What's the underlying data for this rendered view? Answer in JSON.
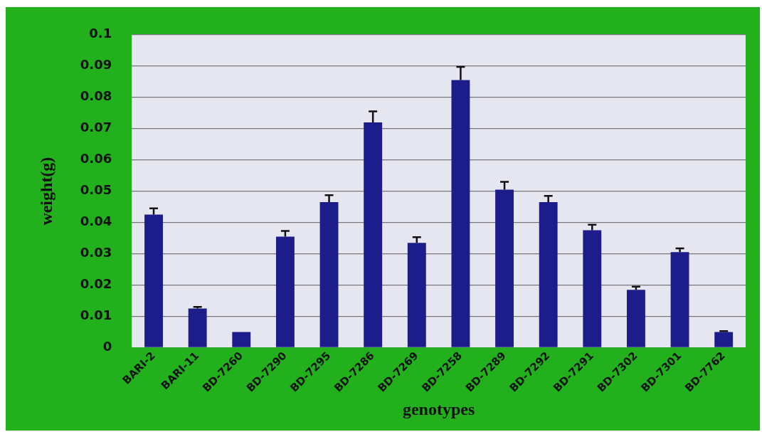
{
  "chart_data": {
    "type": "bar",
    "xlabel": "genotypes",
    "ylabel": "weight(g)",
    "categories": [
      "BARI-2",
      "BARI-11",
      "BD-7260",
      "BD-7290",
      "BD-7295",
      "BD-7286",
      "BD-7269",
      "BD-7258",
      "BD-7289",
      "BD-7292",
      "BD-7291",
      "BD-7302",
      "BD-7301",
      "BD-7762"
    ],
    "values": [
      0.0425,
      0.0125,
      0.005,
      0.0355,
      0.0465,
      0.072,
      0.0335,
      0.0855,
      0.0505,
      0.0465,
      0.0375,
      0.0185,
      0.0305,
      0.005
    ],
    "errors": [
      [
        0.0425,
        0.0445
      ],
      [
        0.0125,
        0.013
      ],
      null,
      [
        0.0355,
        0.0373
      ],
      [
        0.0465,
        0.0487
      ],
      [
        0.072,
        0.0755
      ],
      [
        0.0335,
        0.0353
      ],
      [
        0.0855,
        0.0897
      ],
      [
        0.0505,
        0.053
      ],
      [
        0.0465,
        0.0485
      ],
      [
        0.0375,
        0.0393
      ],
      [
        0.0185,
        0.0195
      ],
      [
        0.0305,
        0.0317
      ],
      [
        0.005,
        0.0053
      ]
    ],
    "color": "#1c1c8a",
    "ylim": [
      0,
      0.1
    ],
    "yticks": [
      0,
      0.01,
      0.02,
      0.03,
      0.04,
      0.05,
      0.06,
      0.07,
      0.08,
      0.09,
      0.1
    ],
    "grid": "y",
    "legend": false
  }
}
